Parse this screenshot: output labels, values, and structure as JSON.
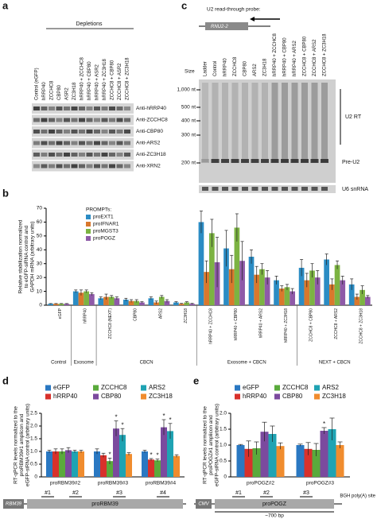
{
  "panel_labels": [
    "a",
    "b",
    "c",
    "d",
    "e"
  ],
  "panel_a": {
    "header": "Depletions",
    "lanes": [
      "Control (eGFP)",
      "hRRP40",
      "ZCCHC8",
      "CBP80",
      "ASR2",
      "ZC3H18",
      "hRRP40 + ZCCHC8",
      "hRRP40 + CBP80",
      "hRRP40 + ASR2",
      "hRRP40 + ZC3H18",
      "ZCCHC8 + CBP80",
      "ZCCHC8 + ASR2",
      "ZCCHC8 + ZC3H18"
    ],
    "blots": [
      "Anti-hRRP40",
      "Anti-ZCCHC8",
      "Anti-CBP80",
      "Anti-ARS2",
      "Anti-ZC3H18",
      "Anti-XRN2"
    ]
  },
  "panel_c": {
    "probe_label": "U2 read-through probe:",
    "gene": "RNU2-2",
    "lanes": [
      "Ladder",
      "Control",
      "hRRP40",
      "ZCCHC8",
      "CBP80",
      "ARS2",
      "ZC3H18",
      "hRRP40 + ZCCHC8",
      "hRRP40 + CBP80",
      "hRRP40 + ARS2",
      "ZCCHC8 + CBP80",
      "ZCCHC8 + ARS2",
      "ZCCHC8 + ZC3H18"
    ],
    "size_header": "Size",
    "sizes": [
      "1,000 nt",
      "500 nt",
      "400 nt",
      "300 nt",
      "200 nt"
    ],
    "bands": [
      "U2 RT",
      "Pre-U2"
    ],
    "loading": "U6 snRNA"
  },
  "chart_data": [
    {
      "type": "bar",
      "ylabel": [
        "Relative stabilization normalized",
        "to eGFP-siRNA control and",
        "GAPDH mRNA (arbitrary units)"
      ],
      "legend_title": "PROMPTs:",
      "legend": "upper left",
      "groups": [
        {
          "label": "Control",
          "categories": [
            "eGFP"
          ]
        },
        {
          "label": "Exosome",
          "categories": [
            "hRRP40"
          ]
        },
        {
          "label": "CBCN",
          "categories": [
            "ZCCHC8 (NEXT)",
            "CBP80",
            "ARS2",
            "ZC3H18"
          ]
        },
        {
          "label": "Exosome + CBCN",
          "categories": [
            "hRRP40 + ZCCHC8",
            "hRRP40 + CBP80",
            "hRRP40 + ARS2",
            "hRRP40 + ZC3H18"
          ]
        },
        {
          "label": "NEXT + CBCN",
          "categories": [
            "ZCCHC8 + CBP80",
            "ZCCHC8 + ARS2",
            "ZCCHC8 + ZC3H18"
          ]
        }
      ],
      "series": [
        {
          "name": "proEXT1",
          "color": "#2b8cc4",
          "values": [
            1,
            10,
            5,
            4,
            5,
            2,
            60,
            41,
            35,
            18,
            27,
            33,
            15
          ],
          "errors": [
            0.2,
            1,
            1,
            1,
            1,
            0.5,
            8,
            13,
            5,
            3,
            6,
            4,
            4
          ]
        },
        {
          "name": "proIFNAR1",
          "color": "#d9782d",
          "values": [
            1,
            9,
            6,
            3,
            2,
            1,
            24,
            26,
            22,
            12,
            18,
            15,
            6
          ],
          "errors": [
            0.2,
            2,
            2,
            1,
            1,
            0.3,
            8,
            10,
            6,
            2,
            5,
            4,
            2
          ]
        },
        {
          "name": "proMGST3",
          "color": "#7cb342",
          "values": [
            1,
            10,
            6,
            3,
            6,
            2,
            52,
            56,
            26,
            13,
            25,
            29,
            11
          ],
          "errors": [
            0.2,
            1,
            1,
            1,
            1,
            0.5,
            10,
            10,
            4,
            2,
            5,
            3,
            3
          ]
        },
        {
          "name": "proPOGZ",
          "color": "#8e5aa8",
          "values": [
            1,
            8,
            5,
            2,
            3,
            1,
            31,
            32,
            20,
            10,
            20,
            18,
            6
          ],
          "errors": [
            0.2,
            1,
            1,
            0.5,
            1,
            0.3,
            18,
            14,
            5,
            2,
            5,
            3,
            1
          ]
        }
      ],
      "ylim": [
        0,
        70
      ],
      "yticks": [
        0,
        10,
        20,
        30,
        40,
        50,
        60,
        70
      ]
    },
    {
      "type": "bar",
      "ylabel": [
        "RT-qPCR levels normalized to the",
        "proRBM39#1 amplicon and",
        "eGFP-siRNA control (arbitrary units)"
      ],
      "legend": "above",
      "categories": [
        "proRBM39#2",
        "proRBM39#3",
        "proRBM39#4"
      ],
      "series": [
        {
          "name": "eGFP",
          "color": "#2a78c2",
          "values": [
            1.0,
            1.0,
            1.0
          ],
          "errors": [
            0.05,
            0.1,
            0.05
          ]
        },
        {
          "name": "hRRP40",
          "color": "#d8312b",
          "values": [
            1.0,
            0.85,
            0.68
          ],
          "errors": [
            0.1,
            0.08,
            0.04
          ],
          "significance": [
            null,
            null,
            "*"
          ]
        },
        {
          "name": "ZCCHC8",
          "color": "#5aaa3c",
          "values": [
            1.0,
            0.62,
            0.65
          ],
          "errors": [
            0.1,
            0.12,
            0.05
          ],
          "significance": [
            null,
            "*",
            "*"
          ]
        },
        {
          "name": "CBP80",
          "color": "#7b4a9e",
          "values": [
            1.05,
            1.9,
            1.95
          ],
          "errors": [
            0.1,
            0.3,
            0.3
          ],
          "significance": [
            null,
            "*",
            "*"
          ]
        },
        {
          "name": "ARS2",
          "color": "#1fa3b3",
          "values": [
            1.0,
            1.65,
            1.8
          ],
          "errors": [
            0.05,
            0.25,
            0.3
          ],
          "significance": [
            null,
            "*",
            "*"
          ]
        },
        {
          "name": "ZC3H18",
          "color": "#f08c2e",
          "values": [
            1.0,
            0.9,
            0.82
          ],
          "errors": [
            0.05,
            0.05,
            0.05
          ]
        }
      ],
      "ylim": [
        0,
        2.5
      ],
      "yticks": [
        0,
        0.5,
        {
          "value": 1,
          "label": "1.0"
        },
        1.5,
        {
          "value": 2,
          "label": "2.0"
        },
        2.5
      ]
    },
    {
      "type": "bar",
      "ylabel": [
        "RT-qPCR levels normalized to the",
        "proPOGZ#1 amplicon and",
        "eGFP-siRNA control (arbitrary units)"
      ],
      "legend": "above",
      "categories": [
        "proPOGZ#2",
        "proPOGZ#3"
      ],
      "series": [
        {
          "name": "eGFP",
          "color": "#2a78c2",
          "values": [
            1.0,
            1.0
          ],
          "errors": [
            0.02,
            0.03
          ]
        },
        {
          "name": "hRRP40",
          "color": "#d8312b",
          "values": [
            0.88,
            0.88
          ],
          "errors": [
            0.25,
            0.2
          ]
        },
        {
          "name": "ZCCHC8",
          "color": "#5aaa3c",
          "values": [
            0.9,
            0.85
          ],
          "errors": [
            0.2,
            0.2
          ]
        },
        {
          "name": "CBP80",
          "color": "#7b4a9e",
          "values": [
            1.42,
            1.45
          ],
          "errors": [
            0.3,
            0.1
          ],
          "significance": [
            null,
            "*"
          ]
        },
        {
          "name": "ARS2",
          "color": "#1fa3b3",
          "values": [
            1.35,
            1.5
          ],
          "errors": [
            0.25,
            0.35
          ]
        },
        {
          "name": "ZC3H18",
          "color": "#f08c2e",
          "values": [
            0.97,
            1.0
          ],
          "errors": [
            0.1,
            0.1
          ]
        }
      ],
      "ylim": [
        0,
        2
      ],
      "yticks": [
        0,
        0.5,
        {
          "value": 1,
          "label": "1.0"
        },
        1.5,
        {
          "value": 2,
          "label": "2.0"
        }
      ]
    }
  ],
  "gene_maps": [
    {
      "gene": "RBM39",
      "promoter": "proRBM39",
      "amplicons": [
        "#1",
        "#2",
        "#3",
        "#4"
      ]
    },
    {
      "gene": "CMV",
      "promoter": "proPOGZ",
      "amplicons": [
        "#1",
        "#2",
        "#3"
      ],
      "terminator": "BGH poly(A) site",
      "length": "~700 bp"
    }
  ]
}
